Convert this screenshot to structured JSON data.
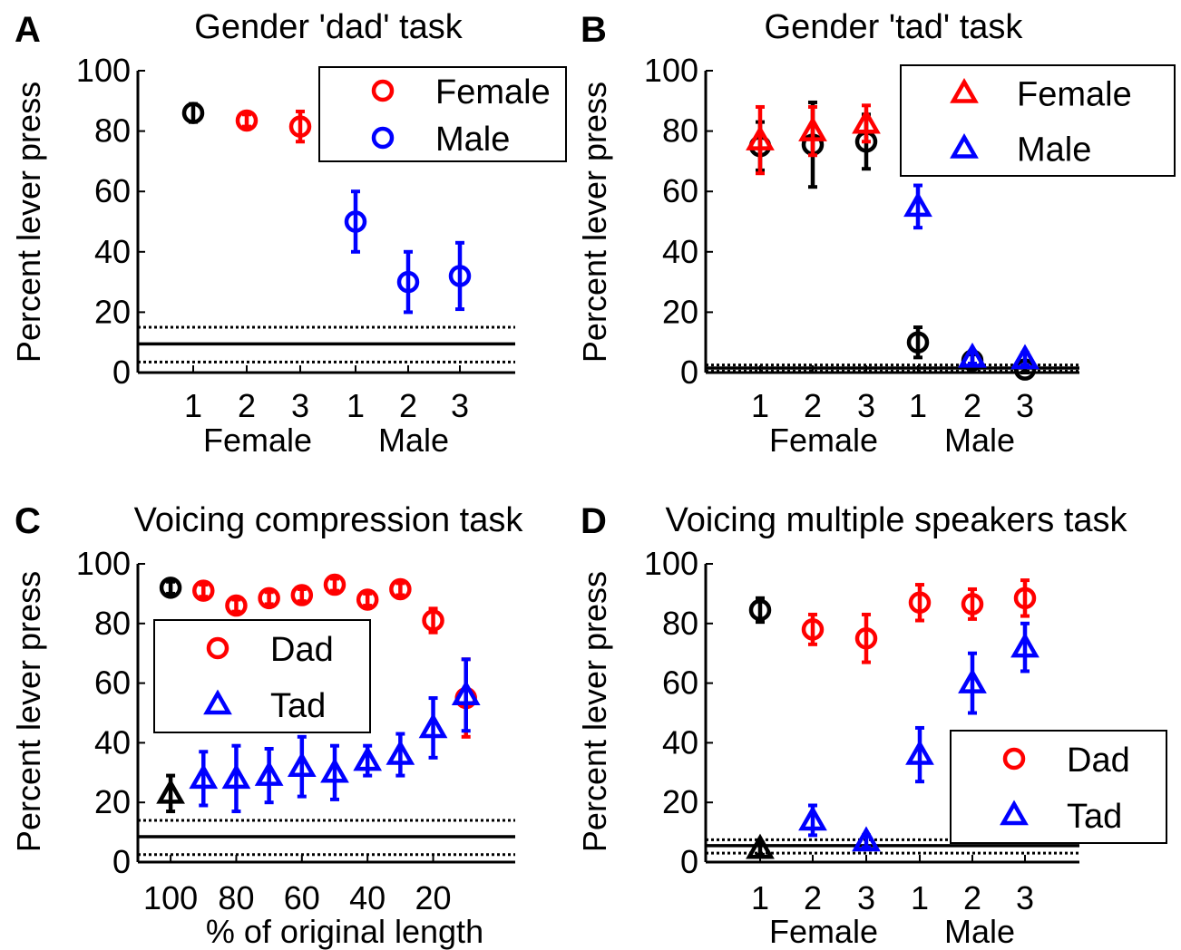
{
  "colors": {
    "red": "#ff0000",
    "blue": "#0000ff",
    "black": "#000000"
  },
  "chart_data": [
    {
      "panel": "A",
      "type": "scatter",
      "title": "Gender 'dad' task",
      "ylabel": "Percent lever press",
      "ylim": [
        0,
        100
      ],
      "yticks": [
        "0",
        "20",
        "40",
        "60",
        "80",
        "100"
      ],
      "xticks": [
        "1",
        "2",
        "3",
        "1",
        "2",
        "3"
      ],
      "xgroups": [
        "Female",
        "Male"
      ],
      "legend": {
        "placement": "top-right",
        "entries": [
          {
            "label": "Female",
            "marker": "circle",
            "color": "#ff0000"
          },
          {
            "label": "Male",
            "marker": "circle",
            "color": "#0000ff"
          }
        ]
      },
      "points": [
        {
          "x": 0,
          "y": 86,
          "err": 3,
          "marker": "circle",
          "color": "#000000"
        },
        {
          "x": 1,
          "y": 83.5,
          "err": 2,
          "marker": "circle",
          "color": "#ff0000"
        },
        {
          "x": 2,
          "y": 81.5,
          "err": 5,
          "marker": "circle",
          "color": "#ff0000"
        },
        {
          "x": 3,
          "y": 50,
          "err": 10,
          "marker": "circle",
          "color": "#0000ff"
        },
        {
          "x": 4,
          "y": 30,
          "err": 10,
          "marker": "circle",
          "color": "#0000ff"
        },
        {
          "x": 5,
          "y": 32,
          "err": 11,
          "marker": "circle",
          "color": "#0000ff"
        }
      ],
      "hlines": {
        "solid": 9.5,
        "dotted": [
          15,
          3.5
        ]
      }
    },
    {
      "panel": "B",
      "type": "scatter",
      "title": "Gender 'tad' task",
      "ylabel": "Percent lever press",
      "ylim": [
        0,
        100
      ],
      "yticks": [
        "0",
        "20",
        "40",
        "60",
        "80",
        "100"
      ],
      "xticks": [
        "1",
        "2",
        "3",
        "1",
        "2",
        "3"
      ],
      "xgroups": [
        "Female",
        "Male"
      ],
      "legend": {
        "placement": "top-right",
        "entries": [
          {
            "label": "Female",
            "marker": "triangle",
            "color": "#ff0000"
          },
          {
            "label": "Male",
            "marker": "triangle",
            "color": "#0000ff"
          }
        ]
      },
      "points": [
        {
          "x": 0,
          "y": 75,
          "err": 8,
          "marker": "circle",
          "color": "#000000"
        },
        {
          "x": 1,
          "y": 75.5,
          "err": 14,
          "marker": "circle",
          "color": "#000000"
        },
        {
          "x": 2,
          "y": 76.5,
          "err": 9,
          "marker": "circle",
          "color": "#000000"
        },
        {
          "x": 0,
          "y": 77,
          "err": 11,
          "marker": "triangle",
          "color": "#ff0000"
        },
        {
          "x": 1,
          "y": 80,
          "err": 8,
          "marker": "triangle",
          "color": "#ff0000"
        },
        {
          "x": 2,
          "y": 82.5,
          "err": 6,
          "marker": "triangle",
          "color": "#ff0000"
        },
        {
          "x": 3,
          "y": 10,
          "err": 5,
          "marker": "circle",
          "color": "#000000"
        },
        {
          "x": 4,
          "y": 4,
          "err": 2,
          "marker": "circle",
          "color": "#000000"
        },
        {
          "x": 5,
          "y": 1,
          "err": 1,
          "marker": "circle",
          "color": "#000000"
        },
        {
          "x": 3,
          "y": 55,
          "err": 7,
          "marker": "triangle",
          "color": "#0000ff"
        },
        {
          "x": 4,
          "y": 5,
          "err": 2,
          "marker": "triangle",
          "color": "#0000ff"
        },
        {
          "x": 5,
          "y": 4.5,
          "err": 2,
          "marker": "triangle",
          "color": "#0000ff"
        }
      ],
      "hlines": {
        "solid": 1.5,
        "dotted": [
          2.5,
          0.5
        ]
      }
    },
    {
      "panel": "C",
      "type": "scatter",
      "title": "Voicing compression task",
      "ylabel": "Percent lever press",
      "xlabel": "% of original length",
      "ylim": [
        0,
        100
      ],
      "yticks": [
        "0",
        "20",
        "40",
        "60",
        "80",
        "100"
      ],
      "xticks": [
        "100",
        "80",
        "60",
        "40",
        "20"
      ],
      "xtick_values": [
        100,
        80,
        60,
        40,
        20
      ],
      "xlim": [
        105,
        -5
      ],
      "legend": {
        "placement": "middle-left",
        "entries": [
          {
            "label": "Dad",
            "marker": "circle",
            "color": "#ff0000"
          },
          {
            "label": "Tad",
            "marker": "triangle",
            "color": "#0000ff"
          }
        ]
      },
      "points": [
        {
          "x": 100,
          "y": 92,
          "err": 2,
          "marker": "circle",
          "color": "#000000"
        },
        {
          "x": 100,
          "y": 23,
          "err": 6,
          "marker": "triangle",
          "color": "#000000"
        },
        {
          "x": 90,
          "y": 91,
          "err": 2,
          "marker": "circle",
          "color": "#ff0000"
        },
        {
          "x": 80,
          "y": 86,
          "err": 2,
          "marker": "circle",
          "color": "#ff0000"
        },
        {
          "x": 70,
          "y": 88.5,
          "err": 2,
          "marker": "circle",
          "color": "#ff0000"
        },
        {
          "x": 60,
          "y": 89.5,
          "err": 2,
          "marker": "circle",
          "color": "#ff0000"
        },
        {
          "x": 50,
          "y": 93,
          "err": 2,
          "marker": "circle",
          "color": "#ff0000"
        },
        {
          "x": 40,
          "y": 88,
          "err": 2,
          "marker": "circle",
          "color": "#ff0000"
        },
        {
          "x": 30,
          "y": 91.5,
          "err": 2,
          "marker": "circle",
          "color": "#ff0000"
        },
        {
          "x": 20,
          "y": 81,
          "err": 4,
          "marker": "circle",
          "color": "#ff0000"
        },
        {
          "x": 10,
          "y": 55,
          "err": 13,
          "marker": "circle",
          "color": "#ff0000"
        },
        {
          "x": 90,
          "y": 28,
          "err": 9,
          "marker": "triangle",
          "color": "#0000ff"
        },
        {
          "x": 80,
          "y": 28,
          "err": 11,
          "marker": "triangle",
          "color": "#0000ff"
        },
        {
          "x": 70,
          "y": 29,
          "err": 9,
          "marker": "triangle",
          "color": "#0000ff"
        },
        {
          "x": 60,
          "y": 32,
          "err": 10,
          "marker": "triangle",
          "color": "#0000ff"
        },
        {
          "x": 50,
          "y": 30,
          "err": 9,
          "marker": "triangle",
          "color": "#0000ff"
        },
        {
          "x": 40,
          "y": 34,
          "err": 5,
          "marker": "triangle",
          "color": "#0000ff"
        },
        {
          "x": 30,
          "y": 36,
          "err": 7,
          "marker": "triangle",
          "color": "#0000ff"
        },
        {
          "x": 20,
          "y": 45,
          "err": 10,
          "marker": "triangle",
          "color": "#0000ff"
        },
        {
          "x": 10,
          "y": 56,
          "err": 12,
          "marker": "triangle",
          "color": "#0000ff"
        }
      ],
      "hlines": {
        "solid": 8.5,
        "dotted": [
          14,
          2.5
        ]
      }
    },
    {
      "panel": "D",
      "type": "scatter",
      "title": "Voicing multiple speakers task",
      "ylabel": "Percent lever press",
      "ylim": [
        0,
        100
      ],
      "yticks": [
        "0",
        "20",
        "40",
        "60",
        "80",
        "100"
      ],
      "xticks": [
        "1",
        "2",
        "3",
        "1",
        "2",
        "3"
      ],
      "xgroups": [
        "Female",
        "Male"
      ],
      "legend": {
        "placement": "lower-right",
        "entries": [
          {
            "label": "Dad",
            "marker": "circle",
            "color": "#ff0000"
          },
          {
            "label": "Tad",
            "marker": "triangle",
            "color": "#0000ff"
          }
        ]
      },
      "points": [
        {
          "x": 0,
          "y": 84.5,
          "err": 4,
          "marker": "circle",
          "color": "#000000"
        },
        {
          "x": 0,
          "y": 4.5,
          "err": 2,
          "marker": "triangle",
          "color": "#000000"
        },
        {
          "x": 1,
          "y": 78,
          "err": 5,
          "marker": "circle",
          "color": "#ff0000"
        },
        {
          "x": 2,
          "y": 75,
          "err": 8,
          "marker": "circle",
          "color": "#ff0000"
        },
        {
          "x": 3,
          "y": 87,
          "err": 6,
          "marker": "circle",
          "color": "#ff0000"
        },
        {
          "x": 4,
          "y": 86.5,
          "err": 5,
          "marker": "circle",
          "color": "#ff0000"
        },
        {
          "x": 5,
          "y": 88.5,
          "err": 6,
          "marker": "circle",
          "color": "#ff0000"
        },
        {
          "x": 1,
          "y": 14,
          "err": 5,
          "marker": "triangle",
          "color": "#0000ff"
        },
        {
          "x": 2,
          "y": 7,
          "err": 2,
          "marker": "triangle",
          "color": "#0000ff"
        },
        {
          "x": 3,
          "y": 36,
          "err": 9,
          "marker": "triangle",
          "color": "#0000ff"
        },
        {
          "x": 4,
          "y": 60,
          "err": 10,
          "marker": "triangle",
          "color": "#0000ff"
        },
        {
          "x": 5,
          "y": 72,
          "err": 8,
          "marker": "triangle",
          "color": "#0000ff"
        }
      ],
      "hlines": {
        "solid": 5.5,
        "dotted": [
          7.5,
          3
        ]
      }
    }
  ],
  "panel_letters": [
    "A",
    "B",
    "C",
    "D"
  ]
}
